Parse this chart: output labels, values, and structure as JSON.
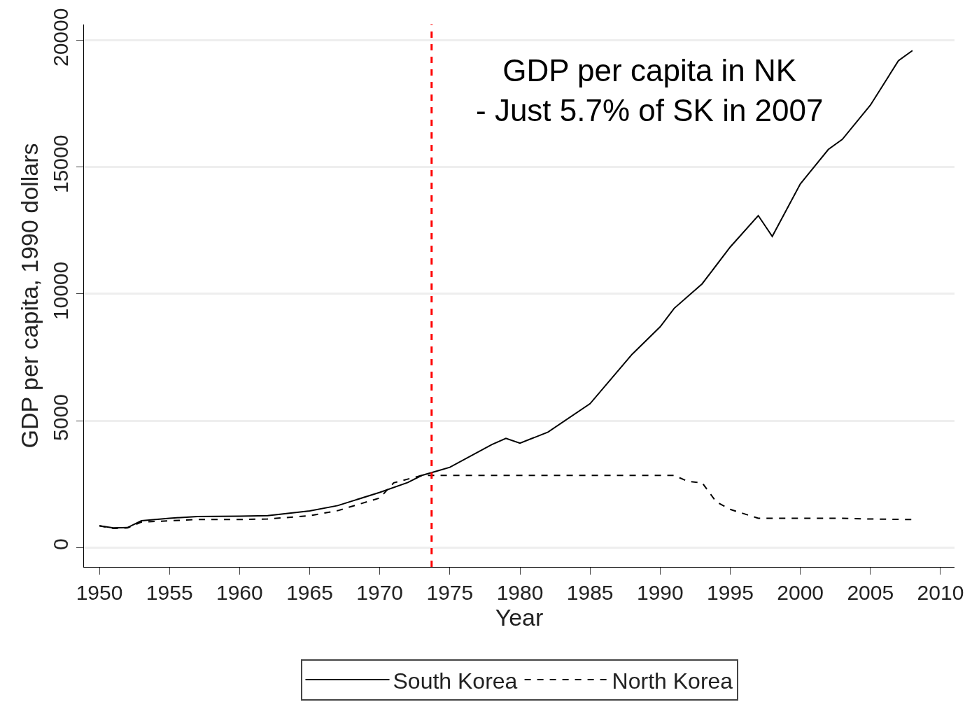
{
  "chart_data": {
    "type": "line",
    "xlabel": "Year",
    "ylabel": "GDP per capita, 1990 dollars",
    "xlim": [
      1948.9,
      2011
    ],
    "xticks": [
      1950,
      1955,
      1960,
      1965,
      1970,
      1975,
      1980,
      1985,
      1990,
      1995,
      2000,
      2005,
      2010
    ],
    "ylim": [
      -770,
      20630
    ],
    "yticks": [
      0,
      5000,
      10000,
      15000,
      20000
    ],
    "grid": "y",
    "legend": "bottom",
    "series": [
      {
        "name": "South Korea",
        "color": "#000000",
        "line_style": "solid",
        "x": [
          1950,
          1951,
          1952,
          1953,
          1955,
          1957,
          1960,
          1962,
          1965,
          1967,
          1970,
          1972,
          1973,
          1974,
          1975,
          1978,
          1979,
          1980,
          1982,
          1985,
          1988,
          1990,
          1991,
          1993,
          1995,
          1997,
          1998,
          2000,
          2002,
          2003,
          2005,
          2007,
          2008
        ],
        "values": [
          850,
          770,
          780,
          1050,
          1150,
          1220,
          1230,
          1250,
          1440,
          1650,
          2170,
          2560,
          2840,
          3000,
          3160,
          4060,
          4300,
          4110,
          4550,
          5670,
          7620,
          8700,
          9430,
          10400,
          11850,
          13090,
          12270,
          14340,
          15700,
          16100,
          17450,
          19200,
          19600
        ]
      },
      {
        "name": "North Korea",
        "color": "#000000",
        "line_style": "dashed",
        "x": [
          1950,
          1951,
          1952,
          1953,
          1955,
          1957,
          1960,
          1962,
          1965,
          1967,
          1970,
          1971,
          1973,
          1974,
          1980,
          1985,
          1991,
          1992,
          1993,
          1994,
          1995,
          1997,
          2000,
          2003,
          2005,
          2008
        ],
        "values": [
          850,
          750,
          770,
          1000,
          1050,
          1100,
          1100,
          1120,
          1250,
          1450,
          1950,
          2550,
          2840,
          2840,
          2840,
          2840,
          2840,
          2600,
          2550,
          1800,
          1500,
          1150,
          1150,
          1150,
          1120,
          1100
        ]
      }
    ],
    "ref_lines": [
      {
        "axis": "x",
        "value": 1973.7,
        "color": "#ff0000",
        "line_style": "dashed"
      }
    ],
    "annotations": [
      "GDP per capita in NK\n- Just 5.7% of SK in 2007"
    ]
  }
}
